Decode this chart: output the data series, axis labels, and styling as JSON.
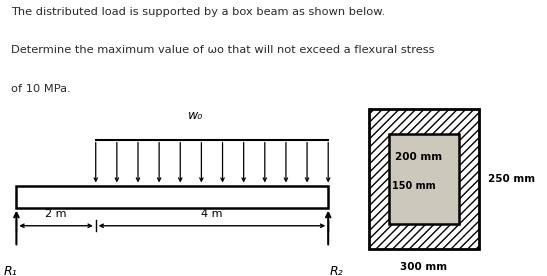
{
  "bg_color": "#ccc8bc",
  "white_bg": "#ffffff",
  "text_color": "#2a2a2a",
  "title_lines": [
    "The distributed load is supported by a box beam as shown below.",
    "Determine the maximum value of ωo that will not exceed a flexural stress",
    "of 10 MPa."
  ],
  "wo_label": "w₀",
  "r1_label": "R₁",
  "r2_label": "R₂",
  "dim_2m_label": "2 m",
  "dim_4m_label": "4 m",
  "dim_200mm": "200 mm",
  "dim_150mm": "150 mm",
  "dim_250mm": "250 mm",
  "dim_300mm": "300 mm"
}
